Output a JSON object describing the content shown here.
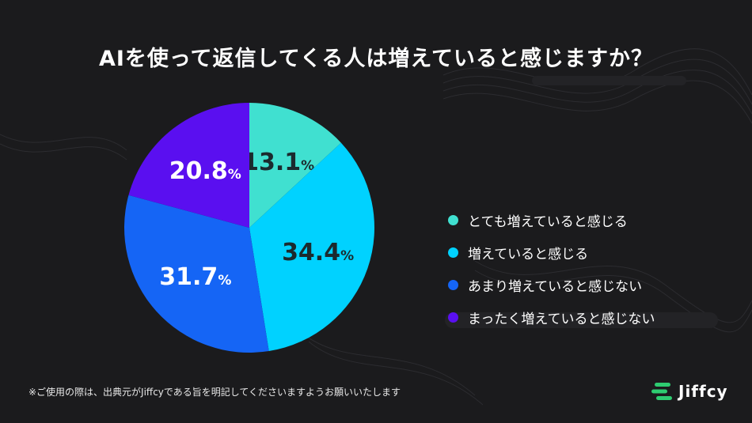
{
  "title": "AIを使って返信してくる人は増えていると感じますか？",
  "chart_data": {
    "type": "pie",
    "title": "AIを使って返信してくる人は増えていると感じますか？",
    "unit": "%",
    "legend_position": "right",
    "slices": [
      {
        "label": "とても増えていると感じる",
        "value": 13.1,
        "display": "13.1",
        "color": "#40e0d0",
        "text_color": "#1b2a2e"
      },
      {
        "label": "増えていると感じる",
        "value": 34.4,
        "display": "34.4",
        "color": "#00d2ff",
        "text_color": "#1b2a2e"
      },
      {
        "label": "あまり増えていると感じない",
        "value": 31.7,
        "display": "31.7",
        "color": "#1565f5",
        "text_color": "#ffffff"
      },
      {
        "label": "まったく増えていると感じない",
        "value": 20.8,
        "display": "20.8",
        "color": "#5a0ff0",
        "text_color": "#ffffff"
      }
    ]
  },
  "legend": [
    {
      "label": "とても増えていると感じる",
      "color": "#40e0d0"
    },
    {
      "label": "増えていると感じる",
      "color": "#00d2ff"
    },
    {
      "label": "あまり増えていると感じない",
      "color": "#1565f5"
    },
    {
      "label": "まったく増えていると感じない",
      "color": "#5a0ff0"
    }
  ],
  "footnote": "※ご使用の際は、出典元がJiffcyである旨を明記してくださいますようお願いいたします",
  "brand": {
    "name": "Jiffcy",
    "icon": "stacked-bars-logo-icon",
    "color": "#2ecc71"
  }
}
